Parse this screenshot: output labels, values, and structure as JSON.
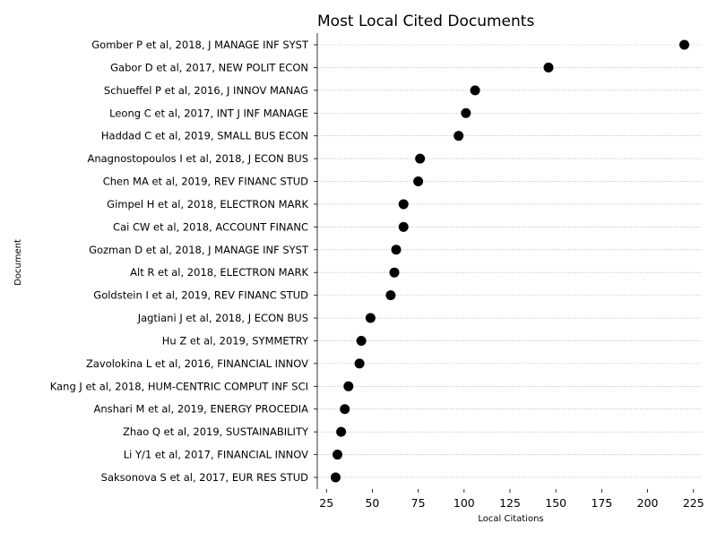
{
  "chart_data": {
    "type": "scatter",
    "title": "Most Local Cited Documents",
    "xlabel": "Local Citations",
    "ylabel": "Document",
    "xlim": [
      20,
      230
    ],
    "xticks": [
      25,
      50,
      75,
      100,
      125,
      150,
      175,
      200,
      225
    ],
    "grid": "horizontal dotted",
    "point_color": "#000000",
    "categories": [
      "Gomber P et al, 2018, J MANAGE INF SYST",
      "Gabor D et al, 2017, NEW POLIT ECON",
      "Schueffel P et al, 2016, J INNOV MANAG",
      "Leong C et al, 2017, INT J INF MANAGE",
      "Haddad C et al, 2019, SMALL BUS ECON",
      "Anagnostopoulos I et al, 2018, J ECON BUS",
      "Chen MA et al, 2019, REV FINANC STUD",
      "Gimpel H et al, 2018, ELECTRON MARK",
      "Cai CW et al, 2018, ACCOUNT FINANC",
      "Gozman D et al, 2018, J MANAGE INF SYST",
      "Alt R et al, 2018, ELECTRON MARK",
      "Goldstein I et al, 2019, REV FINANC STUD",
      "Jagtiani J et al, 2018, J ECON BUS",
      "Hu Z et al, 2019, SYMMETRY",
      "Zavolokina L et al, 2016, FINANCIAL INNOV",
      "Kang J et al, 2018, HUM-CENTRIC COMPUT INF SCI",
      "Anshari M et al, 2019, ENERGY PROCEDIA",
      "Zhao Q et al, 2019, SUSTAINABILITY",
      "Li Y/1 et al, 2017, FINANCIAL INNOV",
      "Saksonova S et al, 2017, EUR RES STUD"
    ],
    "values": [
      220,
      146,
      106,
      101,
      97,
      76,
      75,
      67,
      67,
      63,
      62,
      60,
      49,
      44,
      43,
      37,
      35,
      33,
      31,
      30
    ]
  }
}
